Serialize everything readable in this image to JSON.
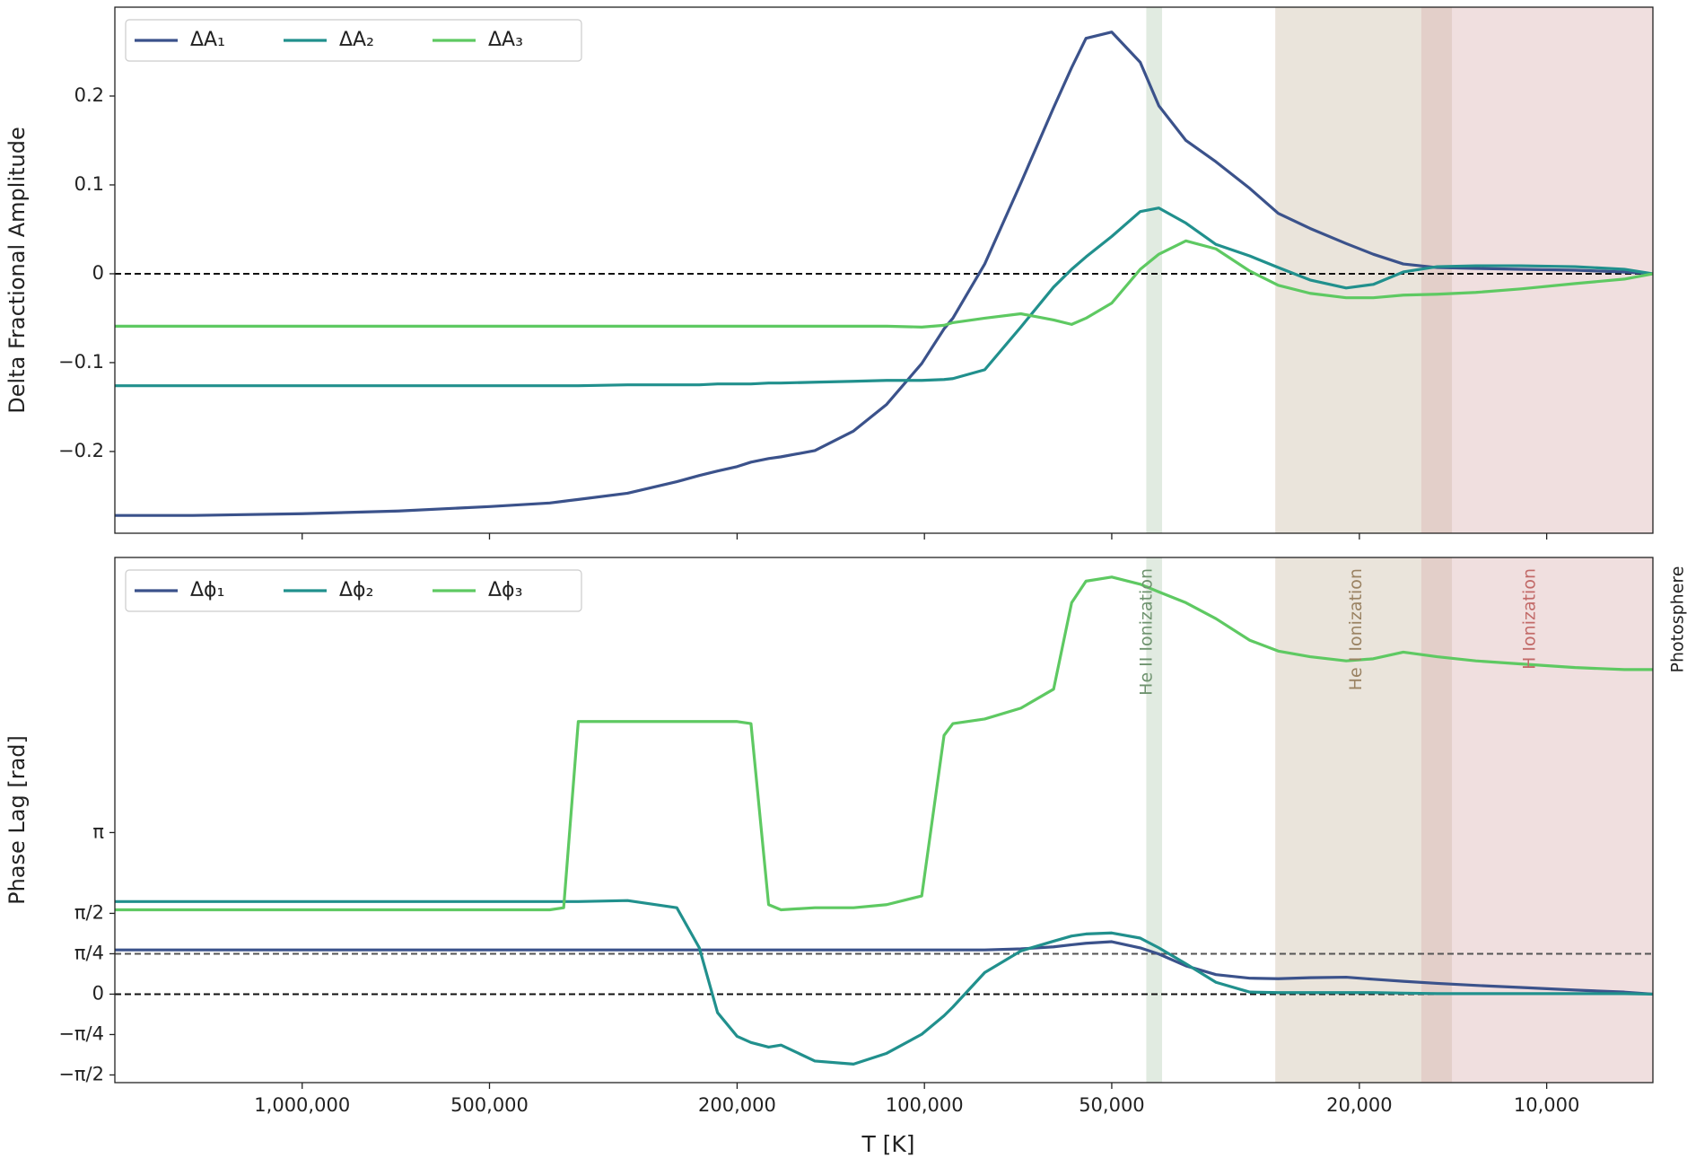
{
  "chart_data": {
    "type": "line",
    "xscale": "log",
    "xlabel": "T [K]",
    "xlim": [
      2000000,
      6750
    ],
    "xticks": [
      {
        "value": 1000000,
        "label": "1,000,000"
      },
      {
        "value": 500000,
        "label": "500,000"
      },
      {
        "value": 200000,
        "label": "200,000"
      },
      {
        "value": 100000,
        "label": "100,000"
      },
      {
        "value": 50000,
        "label": "50,000"
      },
      {
        "value": 20000,
        "label": "20,000"
      },
      {
        "value": 10000,
        "label": "10,000"
      }
    ],
    "x": [
      2000000,
      1500000,
      1000000,
      700000,
      500000,
      400000,
      380000,
      360000,
      300000,
      250000,
      230000,
      215000,
      200000,
      190000,
      178000,
      170000,
      150000,
      130000,
      115000,
      101000,
      93000,
      90000,
      80000,
      70000,
      62000,
      58000,
      55000,
      50000,
      45000,
      42000,
      38000,
      34000,
      30000,
      27000,
      24000,
      21000,
      19000,
      17000,
      15000,
      13000,
      11000,
      9000,
      7500,
      6750
    ],
    "regions": [
      {
        "label": "He II Ionization",
        "from": 44000,
        "to": 41500,
        "color": "#b5ccb5",
        "text_color": "#6f936f"
      },
      {
        "label": "He I Ionization",
        "from": 27300,
        "to": 14200,
        "color": "#cbbba5",
        "text_color": "#9a8262"
      },
      {
        "label": "H Ionization",
        "from": 15900,
        "to": 6750,
        "color": "#d9b0ae",
        "text_color": "#c26a68"
      }
    ],
    "edge_label": "Photosphere",
    "panels": [
      {
        "ylabel": "Delta Fractional Amplitude",
        "ylim": [
          -0.292,
          0.3
        ],
        "yticks": [
          {
            "value": -0.2,
            "label": "−0.2"
          },
          {
            "value": -0.1,
            "label": "−0.1"
          },
          0.0,
          0.1,
          0.2
        ],
        "hlines": [
          {
            "value": 0,
            "color": "#111111"
          }
        ],
        "series": [
          {
            "name": "ΔA₁",
            "color": "#3b528b",
            "values": [
              -0.272,
              -0.272,
              -0.27,
              -0.267,
              -0.262,
              -0.258,
              -0.256,
              -0.254,
              -0.247,
              -0.234,
              -0.227,
              -0.222,
              -0.217,
              -0.212,
              -0.208,
              -0.206,
              -0.199,
              -0.177,
              -0.147,
              -0.101,
              -0.062,
              -0.05,
              0.011,
              0.102,
              0.187,
              0.232,
              0.265,
              0.272,
              0.238,
              0.189,
              0.15,
              0.126,
              0.096,
              0.068,
              0.051,
              0.034,
              0.022,
              0.011,
              0.007,
              0.006,
              0.005,
              0.004,
              0.002,
              0.0
            ]
          },
          {
            "name": "ΔA₂",
            "color": "#21908d",
            "values": [
              -0.126,
              -0.126,
              -0.126,
              -0.126,
              -0.126,
              -0.126,
              -0.126,
              -0.126,
              -0.125,
              -0.125,
              -0.125,
              -0.124,
              -0.124,
              -0.124,
              -0.123,
              -0.123,
              -0.122,
              -0.121,
              -0.12,
              -0.12,
              -0.119,
              -0.118,
              -0.108,
              -0.06,
              -0.015,
              0.005,
              0.019,
              0.042,
              0.07,
              0.074,
              0.057,
              0.033,
              0.02,
              0.007,
              -0.007,
              -0.016,
              -0.012,
              0.002,
              0.008,
              0.009,
              0.009,
              0.008,
              0.005,
              0.0
            ]
          },
          {
            "name": "ΔA₃",
            "color": "#5ec962",
            "values": [
              -0.059,
              -0.059,
              -0.059,
              -0.059,
              -0.059,
              -0.059,
              -0.059,
              -0.059,
              -0.059,
              -0.059,
              -0.059,
              -0.059,
              -0.059,
              -0.059,
              -0.059,
              -0.059,
              -0.059,
              -0.059,
              -0.059,
              -0.06,
              -0.058,
              -0.055,
              -0.05,
              -0.045,
              -0.052,
              -0.057,
              -0.05,
              -0.033,
              0.005,
              0.022,
              0.037,
              0.028,
              0.003,
              -0.013,
              -0.022,
              -0.027,
              -0.027,
              -0.024,
              -0.023,
              -0.021,
              -0.017,
              -0.011,
              -0.006,
              0.0
            ]
          }
        ]
      },
      {
        "ylabel": "Phase Lag [rad]",
        "ylim": [
          -1.72,
          8.49
        ],
        "yticks": [
          {
            "value": -1.5708,
            "label": "−π/2"
          },
          {
            "value": -0.7854,
            "label": "−π/4"
          },
          0,
          {
            "value": 0.7854,
            "label": "π/4"
          },
          {
            "value": 1.5708,
            "label": "π/2"
          },
          {
            "value": 3.1416,
            "label": "π"
          }
        ],
        "hlines": [
          {
            "value": 0.7854,
            "color": "#555555"
          },
          {
            "value": 0,
            "color": "#111111"
          }
        ],
        "series": [
          {
            "name": "Δϕ₁",
            "color": "#3b528b",
            "values": [
              0.86,
              0.86,
              0.86,
              0.86,
              0.86,
              0.86,
              0.86,
              0.86,
              0.86,
              0.86,
              0.86,
              0.86,
              0.86,
              0.86,
              0.86,
              0.86,
              0.86,
              0.86,
              0.86,
              0.86,
              0.86,
              0.86,
              0.86,
              0.88,
              0.92,
              0.96,
              0.99,
              1.02,
              0.9,
              0.78,
              0.55,
              0.38,
              0.31,
              0.3,
              0.32,
              0.33,
              0.29,
              0.25,
              0.21,
              0.17,
              0.13,
              0.08,
              0.04,
              0.0
            ]
          },
          {
            "name": "Δϕ₂",
            "color": "#21908d",
            "values": [
              1.8,
              1.8,
              1.8,
              1.8,
              1.8,
              1.8,
              1.8,
              1.8,
              1.82,
              1.68,
              0.9,
              -0.36,
              -0.82,
              -0.94,
              -1.03,
              -0.99,
              -1.3,
              -1.36,
              -1.15,
              -0.78,
              -0.42,
              -0.25,
              0.42,
              0.84,
              1.03,
              1.13,
              1.17,
              1.19,
              1.09,
              0.9,
              0.59,
              0.23,
              0.04,
              0.03,
              0.03,
              0.03,
              0.03,
              0.02,
              0.01,
              0.01,
              0.01,
              0.01,
              0.01,
              0.0
            ]
          },
          {
            "name": "Δϕ₃",
            "color": "#5ec962",
            "values": [
              1.64,
              1.64,
              1.64,
              1.64,
              1.64,
              1.64,
              1.68,
              5.3,
              5.3,
              5.3,
              5.3,
              5.3,
              5.3,
              5.26,
              1.74,
              1.64,
              1.68,
              1.68,
              1.74,
              1.91,
              5.03,
              5.26,
              5.35,
              5.56,
              5.93,
              7.61,
              8.03,
              8.11,
              7.97,
              7.82,
              7.61,
              7.3,
              6.88,
              6.67,
              6.56,
              6.48,
              6.52,
              6.65,
              6.56,
              6.48,
              6.42,
              6.35,
              6.31,
              6.31
            ]
          }
        ]
      }
    ]
  }
}
